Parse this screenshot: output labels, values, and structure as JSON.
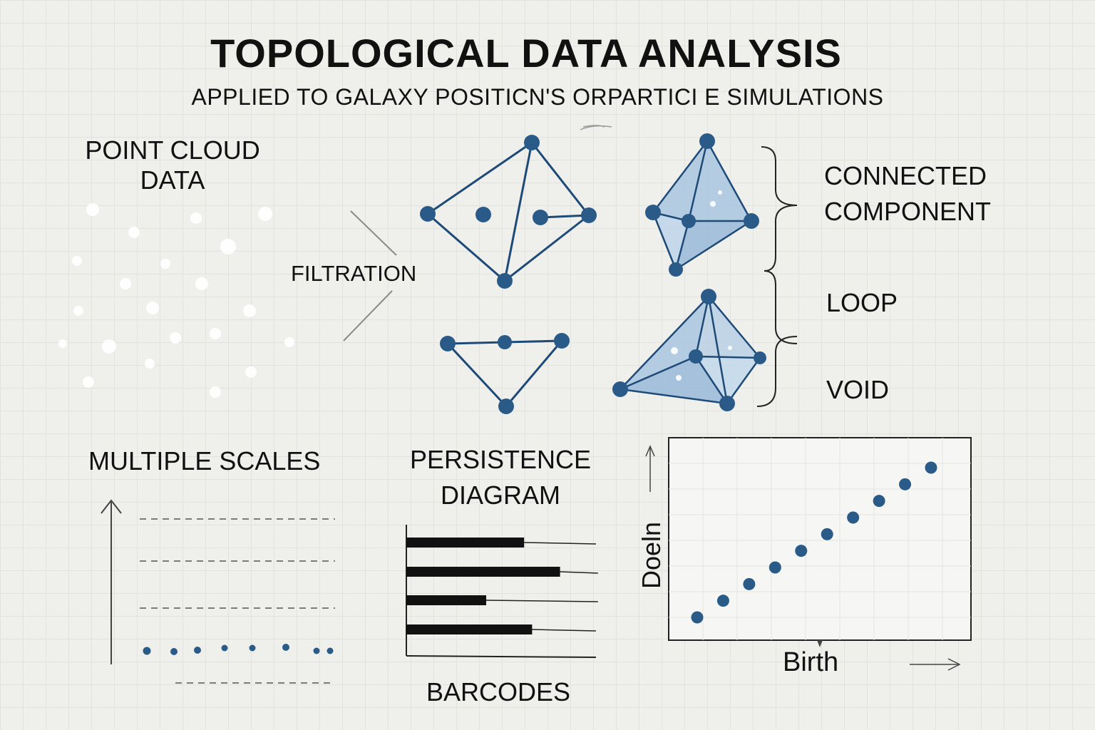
{
  "header": {
    "title": "TOPOLOGICAL DATA ANALYSIS",
    "subtitle": "APPLIED TO GALAXY POSITICN'S ORPARTICI E SIMULATIONS"
  },
  "labels": {
    "point_cloud": [
      "POINT CLOUD",
      "DATA"
    ],
    "filtration": "FILTRATION",
    "connected_component": [
      "CONNECTED",
      "COMPONENT"
    ],
    "loop": "LOOP",
    "void": "VOID",
    "multiple_scales": "MULTIPLE SCALES",
    "persistence_diagram": [
      "PERSISTENCE",
      "DIAGRAM"
    ],
    "barcodes": "BARCODES"
  },
  "persistence_plot": {
    "xlabel": "Birth",
    "ylabel": "Doeln"
  },
  "chart_data": [
    {
      "type": "bar",
      "orientation": "horizontal",
      "values": [
        0.59,
        0.77,
        0.4,
        0.63
      ],
      "extended_to": [
        0.95,
        0.96,
        0.96,
        0.95
      ]
    },
    {
      "type": "scatter",
      "x": [
        1,
        2,
        3,
        4,
        5,
        6,
        7,
        8,
        9,
        10
      ],
      "y": [
        1,
        2,
        3,
        4,
        5,
        6,
        7,
        8,
        9,
        10
      ],
      "xlabel": "Birth",
      "ylabel": "Doeln"
    }
  ],
  "colors": {
    "node": "#2a5a87",
    "edge": "#1e4a78",
    "fill": "#a9c6e0",
    "ink": "#111111",
    "muted_dots": "#ffffff"
  },
  "icons": [
    "brace-icon",
    "up-arrow-icon",
    "right-arrow-icon"
  ]
}
